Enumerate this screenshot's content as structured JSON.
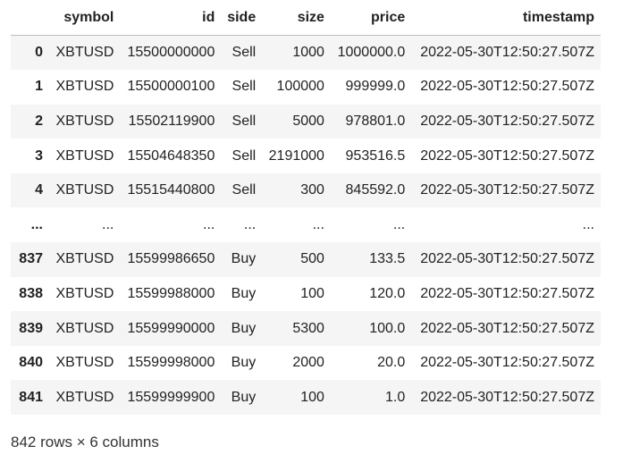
{
  "table": {
    "index_header": "",
    "columns": [
      "symbol",
      "id",
      "side",
      "size",
      "price",
      "timestamp"
    ],
    "rows": [
      {
        "index": "0",
        "cells": [
          "XBTUSD",
          "15500000000",
          "Sell",
          "1000",
          "1000000.0",
          "2022-05-30T12:50:27.507Z"
        ]
      },
      {
        "index": "1",
        "cells": [
          "XBTUSD",
          "15500000100",
          "Sell",
          "100000",
          "999999.0",
          "2022-05-30T12:50:27.507Z"
        ]
      },
      {
        "index": "2",
        "cells": [
          "XBTUSD",
          "15502119900",
          "Sell",
          "5000",
          "978801.0",
          "2022-05-30T12:50:27.507Z"
        ]
      },
      {
        "index": "3",
        "cells": [
          "XBTUSD",
          "15504648350",
          "Sell",
          "2191000",
          "953516.5",
          "2022-05-30T12:50:27.507Z"
        ]
      },
      {
        "index": "4",
        "cells": [
          "XBTUSD",
          "15515440800",
          "Sell",
          "300",
          "845592.0",
          "2022-05-30T12:50:27.507Z"
        ]
      },
      {
        "index": "...",
        "cells": [
          "...",
          "...",
          "...",
          "...",
          "...",
          "..."
        ]
      },
      {
        "index": "837",
        "cells": [
          "XBTUSD",
          "15599986650",
          "Buy",
          "500",
          "133.5",
          "2022-05-30T12:50:27.507Z"
        ]
      },
      {
        "index": "838",
        "cells": [
          "XBTUSD",
          "15599988000",
          "Buy",
          "100",
          "120.0",
          "2022-05-30T12:50:27.507Z"
        ]
      },
      {
        "index": "839",
        "cells": [
          "XBTUSD",
          "15599990000",
          "Buy",
          "5300",
          "100.0",
          "2022-05-30T12:50:27.507Z"
        ]
      },
      {
        "index": "840",
        "cells": [
          "XBTUSD",
          "15599998000",
          "Buy",
          "2000",
          "20.0",
          "2022-05-30T12:50:27.507Z"
        ]
      },
      {
        "index": "841",
        "cells": [
          "XBTUSD",
          "15599999900",
          "Buy",
          "100",
          "1.0",
          "2022-05-30T12:50:27.507Z"
        ]
      }
    ]
  },
  "footer": {
    "shape_text": "842 rows × 6 columns"
  },
  "colors": {
    "striped_row": "#f5f5f5",
    "text": "#222222",
    "header_border": "#bdbdbd"
  }
}
